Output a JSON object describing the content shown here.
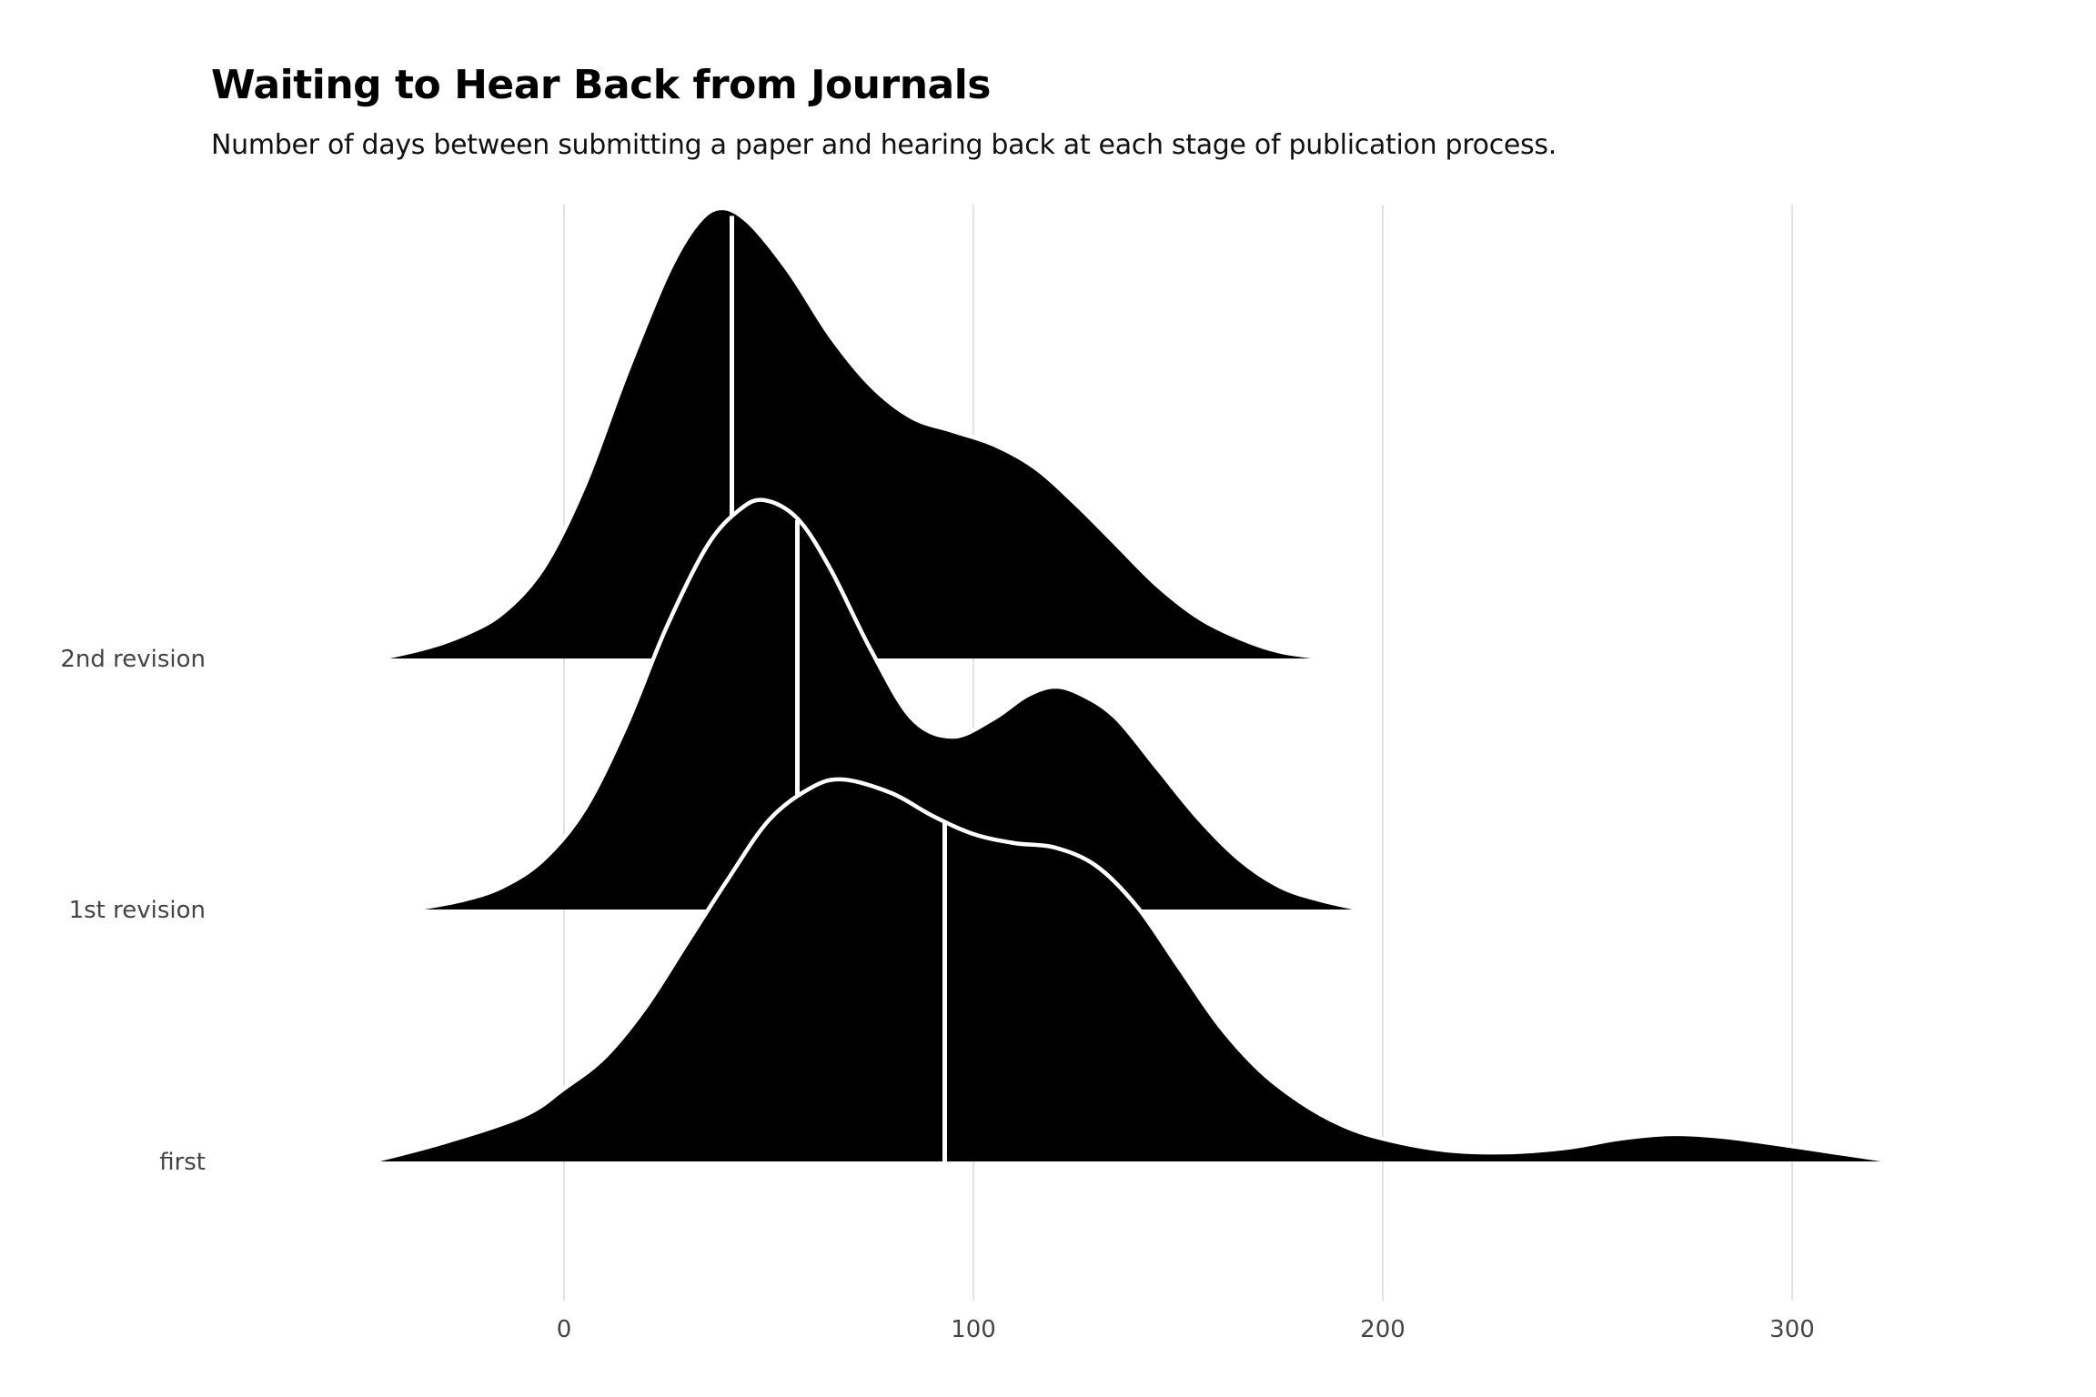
{
  "chart_data": {
    "type": "ridgeline",
    "title": "Waiting to Hear Back from Journals",
    "subtitle": "Number of days between submitting a paper and hearing back at each stage of publication process.",
    "xlabel": "",
    "ylabel": "",
    "xlim": [
      -48,
      325
    ],
    "x_ticks": [
      0,
      100,
      200,
      300
    ],
    "grid": "vertical",
    "fill_color": "#000000",
    "outline_color": "#ffffff",
    "median_line_color": "#ffffff",
    "series": [
      {
        "name": "first",
        "median": 93,
        "density": [
          [
            -47,
            0.0
          ],
          [
            -30,
            0.04
          ],
          [
            -10,
            0.1
          ],
          [
            0,
            0.16
          ],
          [
            10,
            0.23
          ],
          [
            20,
            0.34
          ],
          [
            30,
            0.48
          ],
          [
            40,
            0.62
          ],
          [
            50,
            0.75
          ],
          [
            60,
            0.82
          ],
          [
            68,
            0.84
          ],
          [
            80,
            0.81
          ],
          [
            90,
            0.76
          ],
          [
            100,
            0.72
          ],
          [
            110,
            0.7
          ],
          [
            120,
            0.69
          ],
          [
            130,
            0.65
          ],
          [
            140,
            0.56
          ],
          [
            150,
            0.43
          ],
          [
            160,
            0.3
          ],
          [
            170,
            0.2
          ],
          [
            180,
            0.13
          ],
          [
            190,
            0.08
          ],
          [
            200,
            0.05
          ],
          [
            215,
            0.025
          ],
          [
            230,
            0.02
          ],
          [
            245,
            0.03
          ],
          [
            258,
            0.05
          ],
          [
            270,
            0.06
          ],
          [
            282,
            0.055
          ],
          [
            295,
            0.04
          ],
          [
            310,
            0.02
          ],
          [
            325,
            0.0
          ]
        ]
      },
      {
        "name": "1st revision",
        "median": 57,
        "density": [
          [
            -37,
            0.0
          ],
          [
            -25,
            0.02
          ],
          [
            -15,
            0.05
          ],
          [
            -5,
            0.11
          ],
          [
            5,
            0.22
          ],
          [
            15,
            0.4
          ],
          [
            25,
            0.62
          ],
          [
            35,
            0.8
          ],
          [
            43,
            0.88
          ],
          [
            49,
            0.9
          ],
          [
            57,
            0.86
          ],
          [
            65,
            0.75
          ],
          [
            75,
            0.57
          ],
          [
            85,
            0.42
          ],
          [
            95,
            0.38
          ],
          [
            105,
            0.42
          ],
          [
            113,
            0.47
          ],
          [
            120,
            0.49
          ],
          [
            127,
            0.47
          ],
          [
            135,
            0.42
          ],
          [
            145,
            0.31
          ],
          [
            155,
            0.2
          ],
          [
            165,
            0.11
          ],
          [
            175,
            0.05
          ],
          [
            185,
            0.02
          ],
          [
            195,
            0.0
          ]
        ]
      },
      {
        "name": "2nd revision",
        "median": 41,
        "density": [
          [
            -45,
            0.0
          ],
          [
            -35,
            0.02
          ],
          [
            -25,
            0.05
          ],
          [
            -15,
            0.1
          ],
          [
            -5,
            0.2
          ],
          [
            5,
            0.38
          ],
          [
            15,
            0.62
          ],
          [
            25,
            0.84
          ],
          [
            32,
            0.95
          ],
          [
            38,
            0.99
          ],
          [
            45,
            0.96
          ],
          [
            55,
            0.85
          ],
          [
            65,
            0.71
          ],
          [
            75,
            0.6
          ],
          [
            85,
            0.53
          ],
          [
            95,
            0.5
          ],
          [
            105,
            0.47
          ],
          [
            115,
            0.42
          ],
          [
            125,
            0.34
          ],
          [
            135,
            0.25
          ],
          [
            145,
            0.16
          ],
          [
            155,
            0.09
          ],
          [
            165,
            0.045
          ],
          [
            175,
            0.015
          ],
          [
            187,
            0.0
          ]
        ]
      }
    ]
  }
}
